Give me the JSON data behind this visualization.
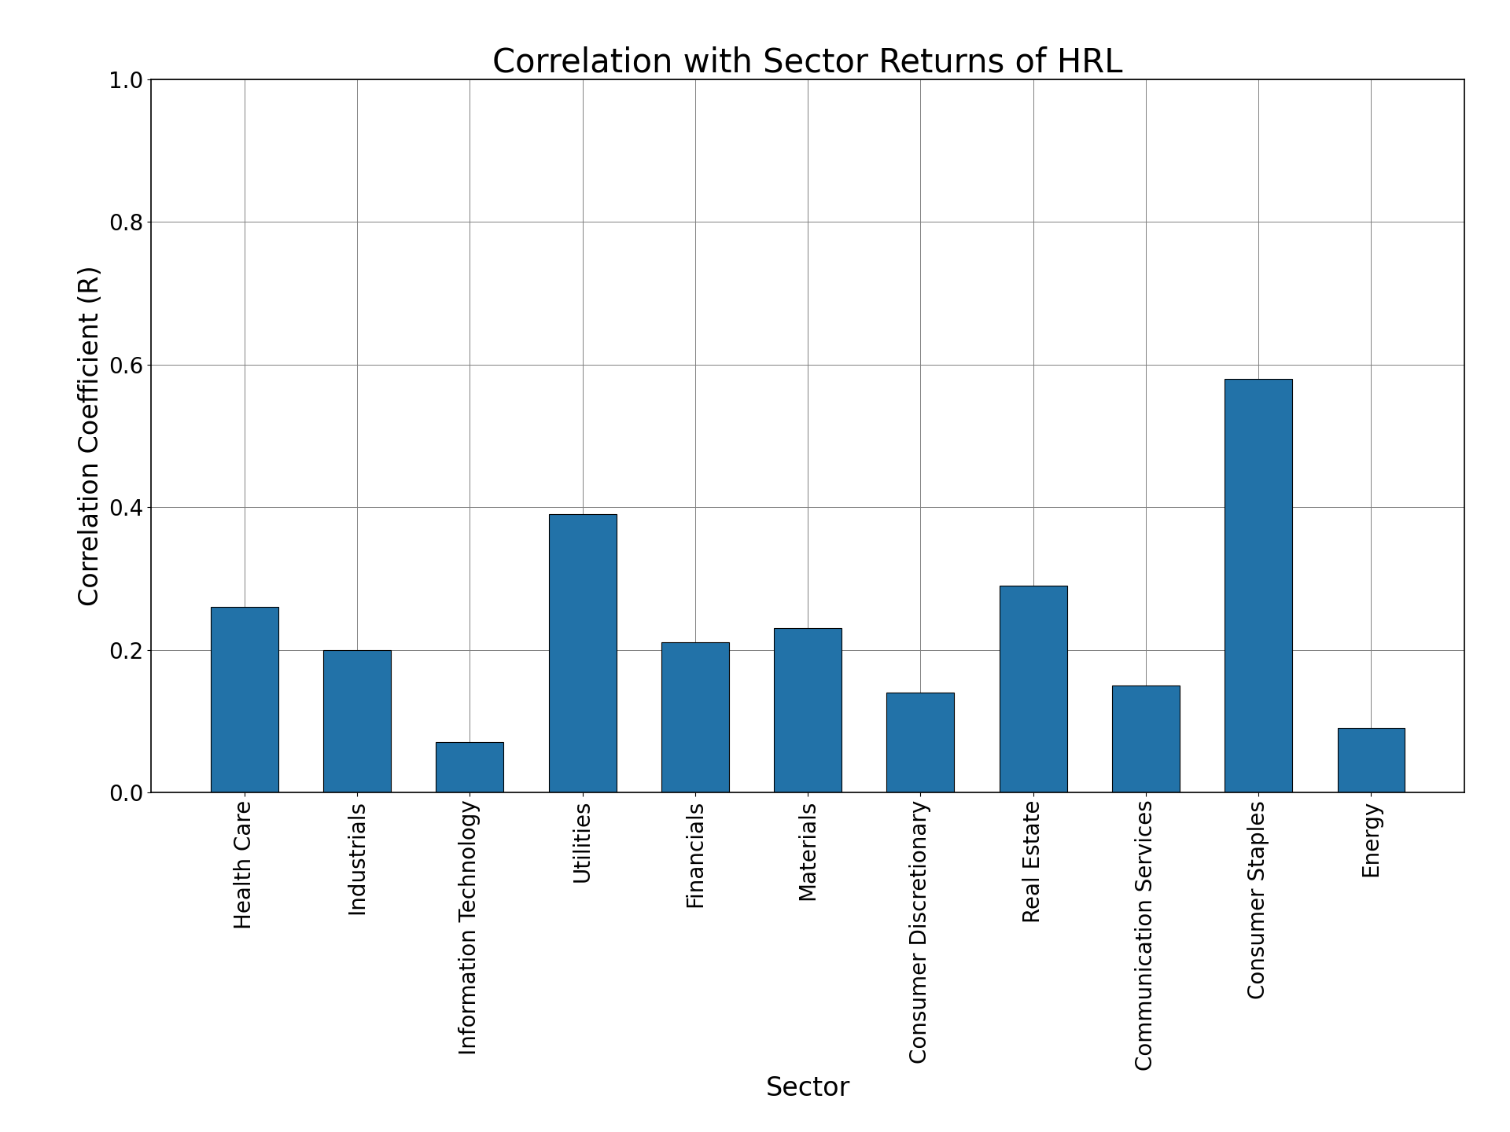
{
  "title": "Correlation with Sector Returns of HRL",
  "xlabel": "Sector",
  "ylabel": "Correlation Coefficient (R)",
  "categories": [
    "Health Care",
    "Industrials",
    "Information Technology",
    "Utilities",
    "Financials",
    "Materials",
    "Consumer Discretionary",
    "Real Estate",
    "Communication Services",
    "Consumer Staples",
    "Energy"
  ],
  "values": [
    0.26,
    0.2,
    0.07,
    0.39,
    0.21,
    0.23,
    0.14,
    0.29,
    0.15,
    0.58,
    0.09
  ],
  "bar_color": "#2272a8",
  "ylim": [
    0.0,
    1.0
  ],
  "yticks": [
    0.0,
    0.2,
    0.4,
    0.6,
    0.8,
    1.0
  ],
  "title_fontsize": 30,
  "label_fontsize": 24,
  "tick_fontsize": 20,
  "xtick_fontsize": 20
}
